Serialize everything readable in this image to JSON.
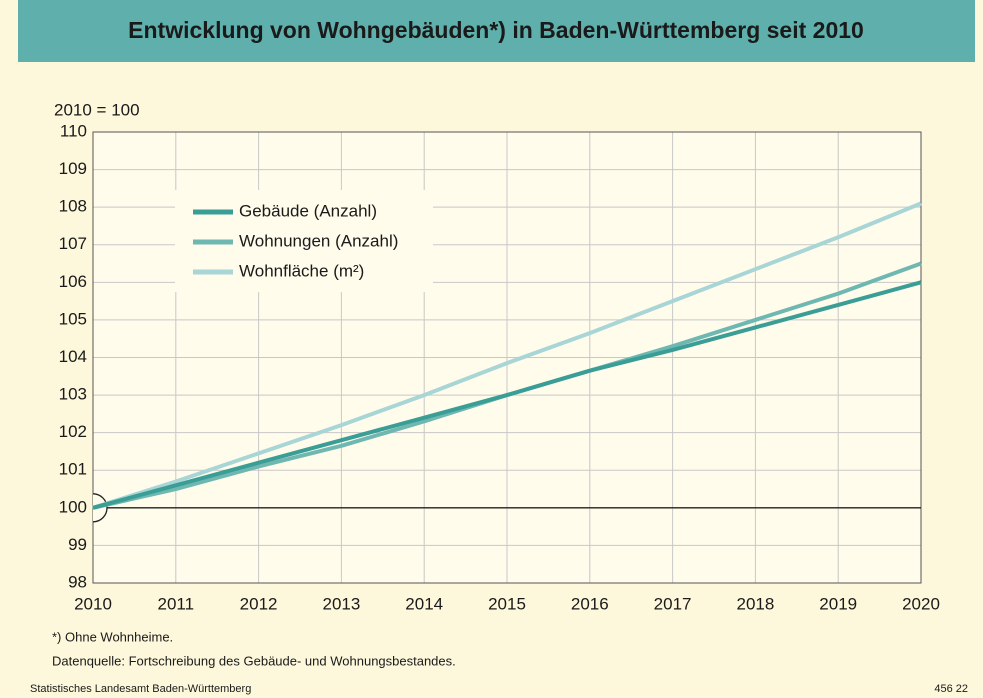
{
  "chart_data": {
    "type": "line",
    "title": "Entwicklung von Wohngebäuden*) in Baden-Württemberg seit 2010",
    "y_label": "2010 = 100",
    "x": [
      2010,
      2011,
      2012,
      2013,
      2014,
      2015,
      2016,
      2017,
      2018,
      2019,
      2020
    ],
    "xlim": [
      2010,
      2020
    ],
    "xticks": [
      2010,
      2011,
      2012,
      2013,
      2014,
      2015,
      2016,
      2017,
      2018,
      2019,
      2020
    ],
    "ylim": [
      98,
      110
    ],
    "yticks": [
      98,
      99,
      100,
      101,
      102,
      103,
      104,
      105,
      106,
      107,
      108,
      109,
      110
    ],
    "grid": true,
    "legend": "upper left",
    "series": [
      {
        "name": "Gebäude (Anzahl)",
        "color": "#3a9e96",
        "values": [
          100,
          100.6,
          101.2,
          101.8,
          102.4,
          103.0,
          103.65,
          104.2,
          104.8,
          105.4,
          106.0
        ]
      },
      {
        "name": "Wohnungen (Anzahl)",
        "color": "#6fb8b2",
        "values": [
          100,
          100.5,
          101.1,
          101.65,
          102.3,
          103.0,
          103.65,
          104.3,
          105.0,
          105.7,
          106.5
        ]
      },
      {
        "name": "Wohnfläche (m²)",
        "color": "#a8d5d6",
        "values": [
          100,
          100.7,
          101.45,
          102.2,
          103.0,
          103.85,
          104.65,
          105.5,
          106.35,
          107.2,
          108.1
        ]
      }
    ],
    "footnote": "*) Ohne Wohnheime.",
    "source": "Datenquelle: Fortschreibung des Gebäude- und Wohnungsbestandes.",
    "publisher": "Statistisches Landesamt Baden-Württemberg",
    "code": "456 22"
  }
}
